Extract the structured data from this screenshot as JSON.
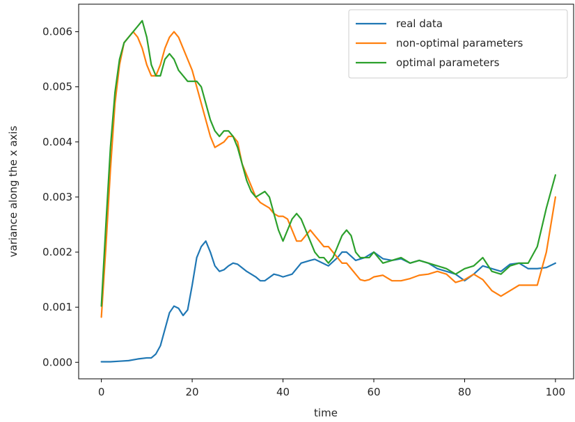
{
  "chart_data": {
    "type": "line",
    "title": "",
    "xlabel": "time",
    "ylabel": "variance along the x axis",
    "xlim": [
      -5,
      104
    ],
    "ylim": [
      -0.0003,
      0.0065
    ],
    "xticks": [
      0,
      20,
      40,
      60,
      80,
      100
    ],
    "xtick_labels": [
      "0",
      "20",
      "40",
      "60",
      "80",
      "100"
    ],
    "yticks": [
      0.0,
      0.001,
      0.002,
      0.003,
      0.004,
      0.005,
      0.006
    ],
    "ytick_labels": [
      "0.000",
      "0.001",
      "0.002",
      "0.003",
      "0.004",
      "0.005",
      "0.006"
    ],
    "grid": false,
    "legend_position": "top-right",
    "series": [
      {
        "name": "real data",
        "color": "#1f77b4",
        "x": [
          0,
          2,
          4,
          6,
          8,
          10,
          11,
          12,
          13,
          14,
          15,
          16,
          17,
          18,
          19,
          20,
          21,
          22,
          23,
          24,
          25,
          26,
          27,
          28,
          29,
          30,
          32,
          34,
          35,
          36,
          38,
          39,
          40,
          42,
          44,
          46,
          47,
          48,
          50,
          52,
          53,
          54,
          56,
          58,
          60,
          62,
          64,
          66,
          68,
          70,
          72,
          74,
          76,
          78,
          80,
          82,
          84,
          86,
          88,
          90,
          92,
          94,
          96,
          98,
          100
        ],
        "y": [
          1e-05,
          1e-05,
          2e-05,
          3e-05,
          6e-05,
          8e-05,
          8e-05,
          0.00015,
          0.0003,
          0.0006,
          0.0009,
          0.00102,
          0.00098,
          0.00085,
          0.00095,
          0.0014,
          0.0019,
          0.0021,
          0.0022,
          0.002,
          0.00175,
          0.00165,
          0.00168,
          0.00175,
          0.0018,
          0.00178,
          0.00165,
          0.00155,
          0.00148,
          0.00148,
          0.0016,
          0.00158,
          0.00155,
          0.0016,
          0.0018,
          0.00185,
          0.00187,
          0.00183,
          0.00175,
          0.0019,
          0.002,
          0.002,
          0.00185,
          0.0019,
          0.002,
          0.00188,
          0.00185,
          0.00188,
          0.0018,
          0.00185,
          0.0018,
          0.0017,
          0.00165,
          0.0016,
          0.00148,
          0.0016,
          0.00175,
          0.0017,
          0.00165,
          0.00178,
          0.0018,
          0.0017,
          0.0017,
          0.00172,
          0.0018
        ]
      },
      {
        "name": "non-optimal parameters",
        "color": "#ff7f0e",
        "x": [
          0,
          1,
          2,
          3,
          4,
          5,
          6,
          7,
          8,
          9,
          10,
          11,
          12,
          13,
          14,
          15,
          16,
          17,
          18,
          19,
          20,
          21,
          22,
          23,
          24,
          25,
          26,
          27,
          28,
          29,
          30,
          31,
          32,
          33,
          34,
          35,
          36,
          37,
          38,
          39,
          40,
          41,
          42,
          43,
          44,
          45,
          46,
          47,
          48,
          49,
          50,
          51,
          52,
          53,
          54,
          55,
          56,
          57,
          58,
          59,
          60,
          62,
          64,
          66,
          68,
          70,
          72,
          74,
          76,
          78,
          80,
          82,
          84,
          86,
          88,
          90,
          92,
          94,
          95,
          96,
          98,
          100
        ],
        "y": [
          0.00082,
          0.0021,
          0.0035,
          0.0047,
          0.0054,
          0.0058,
          0.0059,
          0.006,
          0.0059,
          0.0057,
          0.0054,
          0.0052,
          0.0052,
          0.0054,
          0.0057,
          0.0059,
          0.006,
          0.0059,
          0.0057,
          0.0055,
          0.0053,
          0.005,
          0.0047,
          0.0044,
          0.0041,
          0.0039,
          0.00395,
          0.004,
          0.0041,
          0.0041,
          0.004,
          0.0036,
          0.0034,
          0.0032,
          0.003,
          0.0029,
          0.00285,
          0.0028,
          0.0027,
          0.00265,
          0.00265,
          0.0026,
          0.0024,
          0.0022,
          0.0022,
          0.0023,
          0.0024,
          0.0023,
          0.0022,
          0.0021,
          0.0021,
          0.002,
          0.0019,
          0.0018,
          0.0018,
          0.0017,
          0.0016,
          0.0015,
          0.00148,
          0.0015,
          0.00155,
          0.00158,
          0.00148,
          0.00148,
          0.00152,
          0.00158,
          0.0016,
          0.00165,
          0.0016,
          0.00145,
          0.0015,
          0.0016,
          0.0015,
          0.0013,
          0.0012,
          0.0013,
          0.0014,
          0.0014,
          0.0014,
          0.0014,
          0.002,
          0.003
        ]
      },
      {
        "name": "optimal parameters",
        "color": "#2ca02c",
        "x": [
          0,
          1,
          2,
          3,
          4,
          5,
          6,
          7,
          8,
          9,
          10,
          11,
          12,
          13,
          14,
          15,
          16,
          17,
          18,
          19,
          20,
          21,
          22,
          23,
          24,
          25,
          26,
          27,
          28,
          29,
          30,
          31,
          32,
          33,
          34,
          35,
          36,
          37,
          38,
          39,
          40,
          41,
          42,
          43,
          44,
          45,
          46,
          47,
          48,
          49,
          50,
          51,
          52,
          53,
          54,
          55,
          56,
          57,
          58,
          59,
          60,
          62,
          64,
          66,
          68,
          70,
          72,
          74,
          76,
          78,
          80,
          82,
          84,
          86,
          88,
          90,
          92,
          94,
          96,
          98,
          100
        ],
        "y": [
          0.00102,
          0.0025,
          0.0039,
          0.0049,
          0.0055,
          0.0058,
          0.0059,
          0.006,
          0.0061,
          0.0062,
          0.0059,
          0.0054,
          0.0052,
          0.0052,
          0.0055,
          0.0056,
          0.0055,
          0.0053,
          0.0052,
          0.0051,
          0.0051,
          0.0051,
          0.005,
          0.0047,
          0.0044,
          0.0042,
          0.0041,
          0.0042,
          0.0042,
          0.0041,
          0.0039,
          0.0036,
          0.0033,
          0.0031,
          0.003,
          0.00305,
          0.0031,
          0.003,
          0.0027,
          0.0024,
          0.0022,
          0.0024,
          0.0026,
          0.0027,
          0.0026,
          0.0024,
          0.0022,
          0.002,
          0.0019,
          0.0019,
          0.0018,
          0.0019,
          0.0021,
          0.0023,
          0.0024,
          0.0023,
          0.002,
          0.0019,
          0.0019,
          0.0019,
          0.002,
          0.0018,
          0.00185,
          0.0019,
          0.0018,
          0.00185,
          0.0018,
          0.00175,
          0.0017,
          0.0016,
          0.0017,
          0.00175,
          0.0019,
          0.00165,
          0.0016,
          0.00175,
          0.0018,
          0.0018,
          0.0021,
          0.0028,
          0.0034
        ]
      }
    ]
  }
}
